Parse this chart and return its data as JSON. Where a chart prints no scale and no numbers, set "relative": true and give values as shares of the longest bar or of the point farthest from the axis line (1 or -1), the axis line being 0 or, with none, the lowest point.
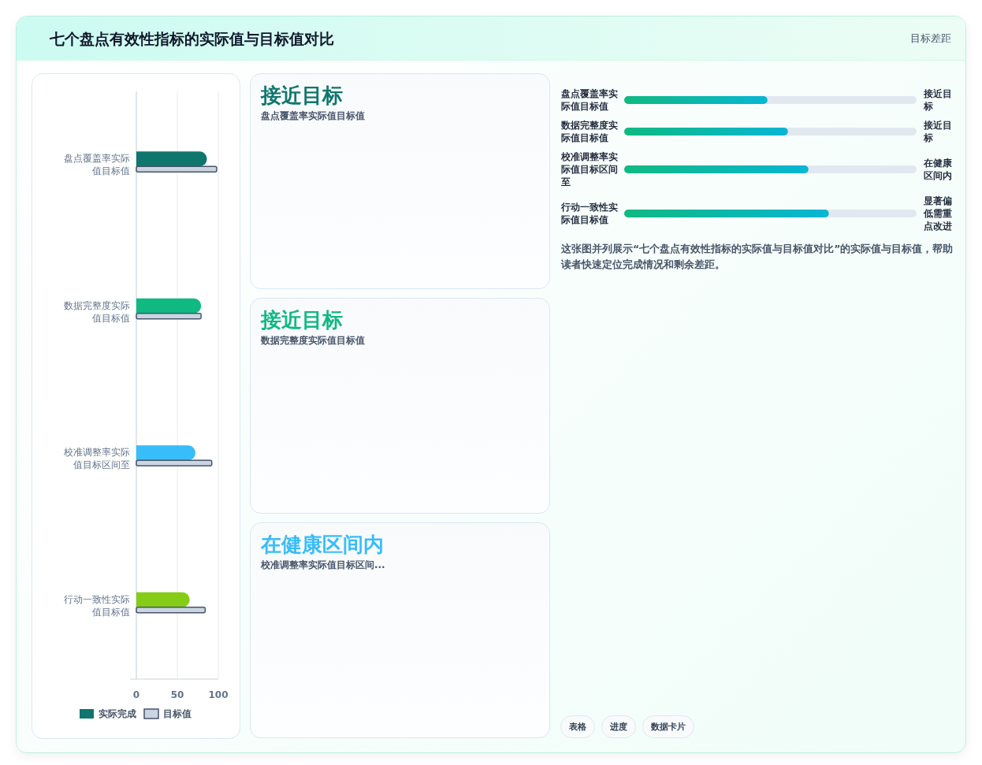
{
  "chart_data": [
    {
      "type": "other",
      "title": "七个盘点有效性指标的实际值与目标值对比",
      "annotations": [
        "目标差距"
      ]
    },
    {
      "type": "bar",
      "orientation": "horizontal",
      "categories": [
        "盘点覆盖率实际值目标值",
        "数据完整度实际值目标值",
        "校准调整率实际值目标区间至",
        "行动一致性实际值目标值"
      ],
      "series": [
        {
          "name": "实际完成",
          "color": "#0f766e",
          "colors": [
            "#0f766e",
            "#10b981",
            "#38bdf8",
            "#84cc16"
          ],
          "values": [
            86,
            79,
            72,
            65
          ]
        },
        {
          "name": "目标值",
          "color": "#cbd5e1",
          "values": [
            98,
            79,
            92,
            84
          ]
        }
      ],
      "xlim": [
        0,
        100
      ],
      "xticks": [
        0,
        50,
        100
      ],
      "grid": "x",
      "legend": "bottom"
    },
    {
      "type": "other",
      "annotations": [
        "接近目标",
        "盘点覆盖率实际值目标值",
        "接近目标",
        "数据完整度实际值目标值",
        "在健康区间内",
        "校准调整率实际值目标区间..."
      ],
      "colors": [
        "#0f766e",
        "#10b981",
        "#38bdf8"
      ]
    },
    {
      "type": "bar",
      "orientation": "horizontal",
      "relative": true,
      "categories": [
        "盘点覆盖率实际值目标值",
        "数据完整度实际值目标值",
        "校准调整率实际值目标区间至",
        "行动一致性实际值目标值"
      ],
      "values": [
        0.7,
        0.8,
        0.9,
        1.0
      ],
      "color": "#10b981",
      "annotations": [
        "接近目标",
        "接近目标",
        "在健康区间内",
        "显著偏低需重点改进",
        "这张图并列展示“七个盘点有效性指标的实际值与目标值对比”的实际值与目标值，帮助读者快速定位完成情况和剩余差距。"
      ]
    },
    {
      "type": "other",
      "annotations": [
        "表格",
        "进度",
        "数据卡片"
      ]
    }
  ]
}
